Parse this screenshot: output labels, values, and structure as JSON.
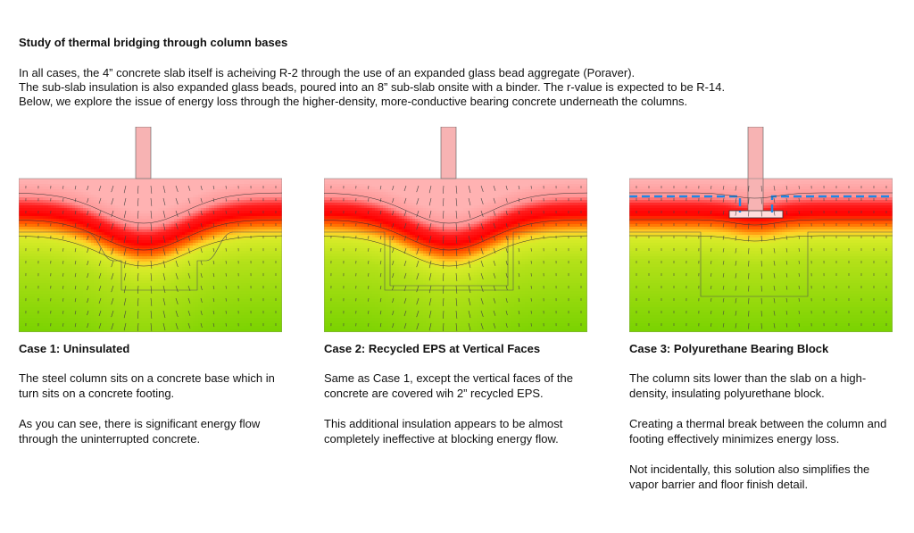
{
  "page": {
    "title": "Study of thermal bridging through column bases",
    "intro": [
      "In all cases, the 4” concrete slab itself is acheiving R-2 through the use of an expanded glass bead aggregate (Poraver).",
      "The sub-slab insulation is also expanded glass beads, poured into an 8” sub-slab onsite with a binder. The r-value is expected to be R-14.",
      "Below, we explore the issue of energy loss through the higher-density, more-conductive bearing concrete underneath the columns."
    ]
  },
  "colors": {
    "hot": "#ff0000",
    "warm": "#ffb6b6",
    "cool": "#7bd300",
    "insulation_line": "#1e88e5"
  },
  "cases": [
    {
      "id": "case1",
      "title": "Case 1: Uninsulated",
      "paragraphs": [
        "The steel column sits on a concrete base which in turn sits on a concrete footing.",
        "As you can see, there is significant energy flow through the uninterrupted concrete."
      ]
    },
    {
      "id": "case2",
      "title": "Case 2: Recycled EPS at Vertical Faces",
      "paragraphs": [
        "Same as Case 1, except the vertical faces of the concrete are covered wih 2” recycled EPS.",
        "This additional insulation appears to be almost completely ineffective at blocking energy flow."
      ]
    },
    {
      "id": "case3",
      "title": "Case 3: Polyurethane Bearing Block",
      "paragraphs": [
        "The column sits lower than the slab on a high-density, insulating polyurethane block.",
        "Creating a thermal break between the column and footing effectively minimizes energy loss.",
        "Not incidentally, this solution also simplifies the vapor barrier and floor finish detail."
      ]
    }
  ]
}
